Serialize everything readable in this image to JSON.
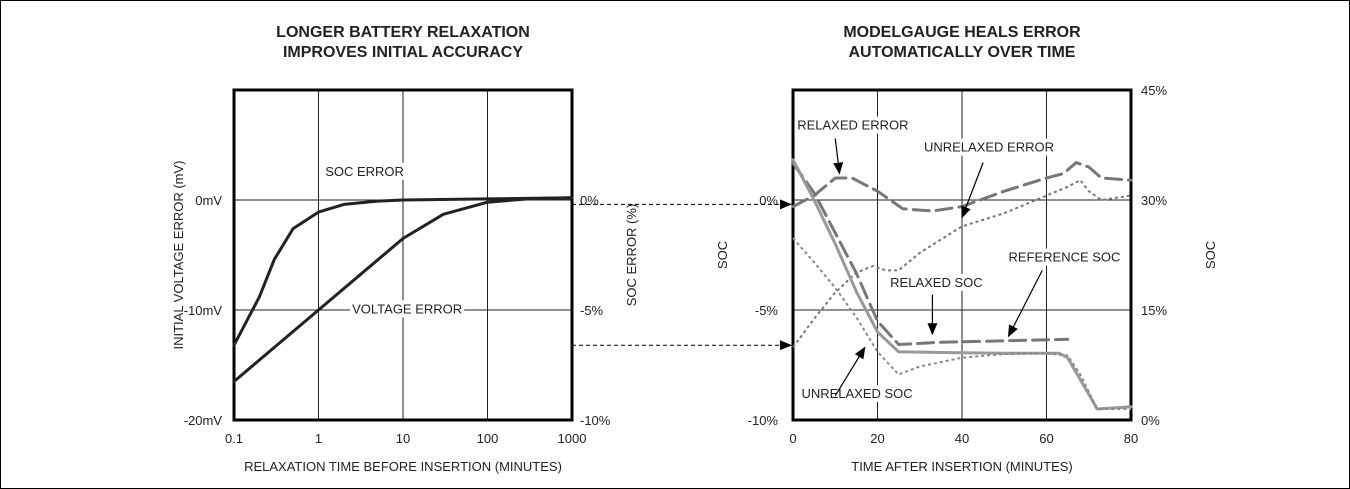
{
  "chart_data": [
    {
      "type": "line",
      "title": [
        "LONGER BATTERY RELAXATION",
        "IMPROVES INITIAL ACCURACY"
      ],
      "xlabel": "RELAXATION TIME BEFORE INSERTION (MINUTES)",
      "ylabel_left": "INITIAL VOLTAGE ERROR (mV)",
      "ylabel_right": "SOC ERROR (%)",
      "x_scale": "log",
      "xlim": [
        0.1,
        1000
      ],
      "x_ticks": [
        "0.1",
        "1",
        "10",
        "100",
        "1000"
      ],
      "ylim_left": [
        -20,
        10
      ],
      "y_ticks_left": [
        {
          "v": 0,
          "label": "0mV"
        },
        {
          "v": -10,
          "label": "-10mV"
        },
        {
          "v": -20,
          "label": "-20mV"
        }
      ],
      "ylim_right": [
        -10,
        5
      ],
      "y_ticks_right": [
        {
          "v": 0,
          "label": "0%"
        },
        {
          "v": -5,
          "label": "-5%"
        },
        {
          "v": -10,
          "label": "-10%"
        }
      ],
      "grid": true,
      "series": [
        {
          "name": "SOC ERROR",
          "axis": "right",
          "color": "#222222",
          "style": "solid",
          "points": [
            [
              0.1,
              -6.6
            ],
            [
              0.2,
              -4.4
            ],
            [
              0.3,
              -2.7
            ],
            [
              0.5,
              -1.3
            ],
            [
              1,
              -0.55
            ],
            [
              2,
              -0.2
            ],
            [
              5,
              -0.05
            ],
            [
              10,
              0
            ],
            [
              100,
              0.05
            ],
            [
              1000,
              0.1
            ]
          ]
        },
        {
          "name": "VOLTAGE ERROR",
          "axis": "left",
          "color": "#222222",
          "style": "solid",
          "points": [
            [
              0.1,
              -16.5
            ],
            [
              1,
              -10
            ],
            [
              10,
              -3.5
            ],
            [
              30,
              -1.3
            ],
            [
              100,
              -0.2
            ],
            [
              300,
              0.1
            ],
            [
              1000,
              0.2
            ]
          ]
        }
      ],
      "annotations": [
        {
          "text": "SOC ERROR",
          "x": 1.2,
          "y": 2.2,
          "axis": "left"
        },
        {
          "text": "VOLTAGE ERROR",
          "x": 2.5,
          "y": -10.3,
          "axis": "left"
        }
      ]
    },
    {
      "type": "line",
      "title": [
        "MODELGAUGE HEALS ERROR",
        "AUTOMATICALLY OVER TIME"
      ],
      "xlabel": "TIME AFTER INSERTION (MINUTES)",
      "ylabel_left": "SOC",
      "ylabel_right": "SOC",
      "xlim": [
        0,
        80
      ],
      "x_ticks": [
        "0",
        "20",
        "40",
        "60",
        "80"
      ],
      "ylim_left": [
        -10,
        5
      ],
      "y_ticks_left": [
        {
          "v": 0,
          "label": "0%"
        },
        {
          "v": -5,
          "label": "-5%"
        },
        {
          "v": -10,
          "label": "-10%"
        }
      ],
      "ylim_right": [
        0,
        45
      ],
      "y_ticks_right": [
        {
          "v": 45,
          "label": "45%"
        },
        {
          "v": 30,
          "label": "30%"
        },
        {
          "v": 15,
          "label": "15%"
        },
        {
          "v": 0,
          "label": "0%"
        }
      ],
      "grid": true,
      "series": [
        {
          "name": "RELAXED ERROR",
          "axis": "left",
          "color": "#777777",
          "style": "long-dash",
          "points": [
            [
              0,
              -0.3
            ],
            [
              5,
              0.2
            ],
            [
              10,
              1.0
            ],
            [
              14,
              1.0
            ],
            [
              20,
              0.4
            ],
            [
              26,
              -0.4
            ],
            [
              33,
              -0.5
            ],
            [
              40,
              -0.3
            ],
            [
              50,
              0.4
            ],
            [
              60,
              1.0
            ],
            [
              64,
              1.2
            ],
            [
              67,
              1.7
            ],
            [
              70,
              1.5
            ],
            [
              73,
              1.0
            ],
            [
              80,
              0.9
            ]
          ]
        },
        {
          "name": "UNRELAXED ERROR",
          "axis": "left",
          "color": "#777777",
          "style": "dotted",
          "points": [
            [
              0,
              -6.7
            ],
            [
              5,
              -5.4
            ],
            [
              10,
              -4.2
            ],
            [
              15,
              -3.3
            ],
            [
              19,
              -3.0
            ],
            [
              22,
              -3.2
            ],
            [
              25,
              -3.2
            ],
            [
              30,
              -2.4
            ],
            [
              40,
              -1.2
            ],
            [
              50,
              -0.6
            ],
            [
              60,
              0.2
            ],
            [
              65,
              0.6
            ],
            [
              68,
              0.9
            ],
            [
              70,
              0.4
            ],
            [
              73,
              0.0
            ],
            [
              80,
              0.2
            ]
          ]
        },
        {
          "name": "RELAXED SOC",
          "axis": "right",
          "color": "#777777",
          "style": "long-dash",
          "points": [
            [
              0,
              35
            ],
            [
              5,
              31
            ],
            [
              10,
              25.5
            ],
            [
              15,
              20
            ],
            [
              20,
              13.5
            ],
            [
              25,
              10.3
            ],
            [
              35,
              10.6
            ],
            [
              50,
              10.8
            ],
            [
              65,
              11.0
            ]
          ]
        },
        {
          "name": "REFERENCE SOC",
          "axis": "right",
          "color": "#999999",
          "style": "solid",
          "points": [
            [
              0,
              35.5
            ],
            [
              5,
              30
            ],
            [
              10,
              24
            ],
            [
              15,
              17.5
            ],
            [
              20,
              12
            ],
            [
              25,
              9.3
            ],
            [
              35,
              9.2
            ],
            [
              50,
              9.1
            ],
            [
              63,
              9.1
            ],
            [
              65,
              8.5
            ],
            [
              70,
              3.5
            ],
            [
              72,
              1.5
            ],
            [
              80,
              1.8
            ]
          ]
        },
        {
          "name": "UNRELAXED SOC",
          "axis": "right",
          "color": "#888888",
          "style": "dotted",
          "points": [
            [
              0,
              24.8
            ],
            [
              5,
              21.5
            ],
            [
              10,
              18
            ],
            [
              15,
              14
            ],
            [
              20,
              9.3
            ],
            [
              25,
              6.2
            ],
            [
              30,
              7.3
            ],
            [
              40,
              8.5
            ],
            [
              50,
              9.0
            ],
            [
              60,
              9.1
            ],
            [
              65,
              8.8
            ],
            [
              68,
              6.2
            ],
            [
              72,
              1.5
            ],
            [
              80,
              1.5
            ]
          ]
        }
      ],
      "annotations": [
        {
          "text": "RELAXED ERROR",
          "x": 1,
          "y": 3.2,
          "axis": "left"
        },
        {
          "text": "UNRELAXED ERROR",
          "x": 31,
          "y": 2.2,
          "axis": "left"
        },
        {
          "text": "REFERENCE SOC",
          "x": 51,
          "y": -2.8,
          "axis": "left"
        },
        {
          "text": "RELAXED SOC",
          "x": 23,
          "y": -3.95,
          "axis": "left"
        },
        {
          "text": "UNRELAXED SOC",
          "x": 2,
          "y": -9.0,
          "axis": "left"
        }
      ]
    }
  ]
}
